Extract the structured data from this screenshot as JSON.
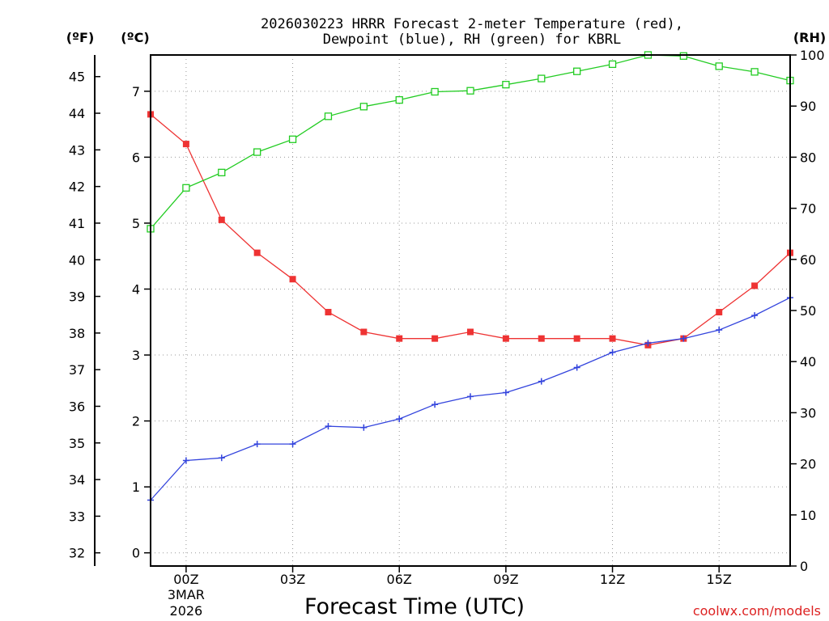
{
  "chart_data": {
    "type": "line",
    "title_line1": "2026030223 HRRR Forecast 2-meter Temperature (red),",
    "title_line2": "Dewpoint (blue), RH (green) for KBRL",
    "xlabel": "Forecast Time (UTC)",
    "credit": "coolwx.com/models",
    "left_unit_f": "(ºF)",
    "left_unit_c": "(ºC)",
    "right_unit": "(RH)",
    "x_hours": [
      -1,
      0,
      1,
      2,
      3,
      4,
      5,
      6,
      7,
      8,
      9,
      10,
      11,
      12,
      13,
      14,
      15,
      16,
      17
    ],
    "x_ticks": [
      {
        "hour": 0,
        "label": "00Z",
        "sub1": "3MAR",
        "sub2": "2026"
      },
      {
        "hour": 3,
        "label": "03Z"
      },
      {
        "hour": 6,
        "label": "06Z"
      },
      {
        "hour": 9,
        "label": "09Z"
      },
      {
        "hour": 12,
        "label": "12Z"
      },
      {
        "hour": 15,
        "label": "15Z"
      }
    ],
    "xlim": [
      -1,
      17
    ],
    "celsius_ylim": [
      -0.2,
      7.55
    ],
    "celsius_ticks": [
      "0",
      "1",
      "2",
      "3",
      "4",
      "5",
      "6",
      "7"
    ],
    "fahrenheit_ticks": [
      "32",
      "33",
      "34",
      "35",
      "36",
      "37",
      "38",
      "39",
      "40",
      "41",
      "42",
      "43",
      "44",
      "45"
    ],
    "rh_ylim": [
      0,
      100
    ],
    "rh_ticks": [
      "0",
      "10",
      "20",
      "30",
      "40",
      "50",
      "60",
      "70",
      "80",
      "90",
      "100"
    ],
    "series": [
      {
        "name": "Temperature",
        "unit": "C",
        "color": "#ee3333",
        "marker": "filled-square",
        "values": [
          6.65,
          6.2,
          5.05,
          4.55,
          4.15,
          3.65,
          3.35,
          3.25,
          3.25,
          3.35,
          3.25,
          3.25,
          3.25,
          3.25,
          3.15,
          3.25,
          3.65,
          4.05,
          4.55
        ]
      },
      {
        "name": "Dewpoint",
        "unit": "C",
        "color": "#3344dd",
        "marker": "plus",
        "values": [
          0.8,
          1.4,
          1.44,
          1.65,
          1.65,
          1.92,
          1.9,
          2.03,
          2.25,
          2.37,
          2.43,
          2.6,
          2.81,
          3.04,
          3.18,
          3.25,
          3.38,
          3.6,
          3.87
        ]
      },
      {
        "name": "RH",
        "unit": "%",
        "color": "#22cc22",
        "marker": "open-square",
        "values": [
          66,
          74,
          77,
          81,
          83.5,
          88,
          89.9,
          91.2,
          92.8,
          93,
          94.2,
          95.4,
          96.8,
          98.2,
          100,
          99.8,
          97.8,
          96.7,
          95
        ]
      }
    ]
  }
}
